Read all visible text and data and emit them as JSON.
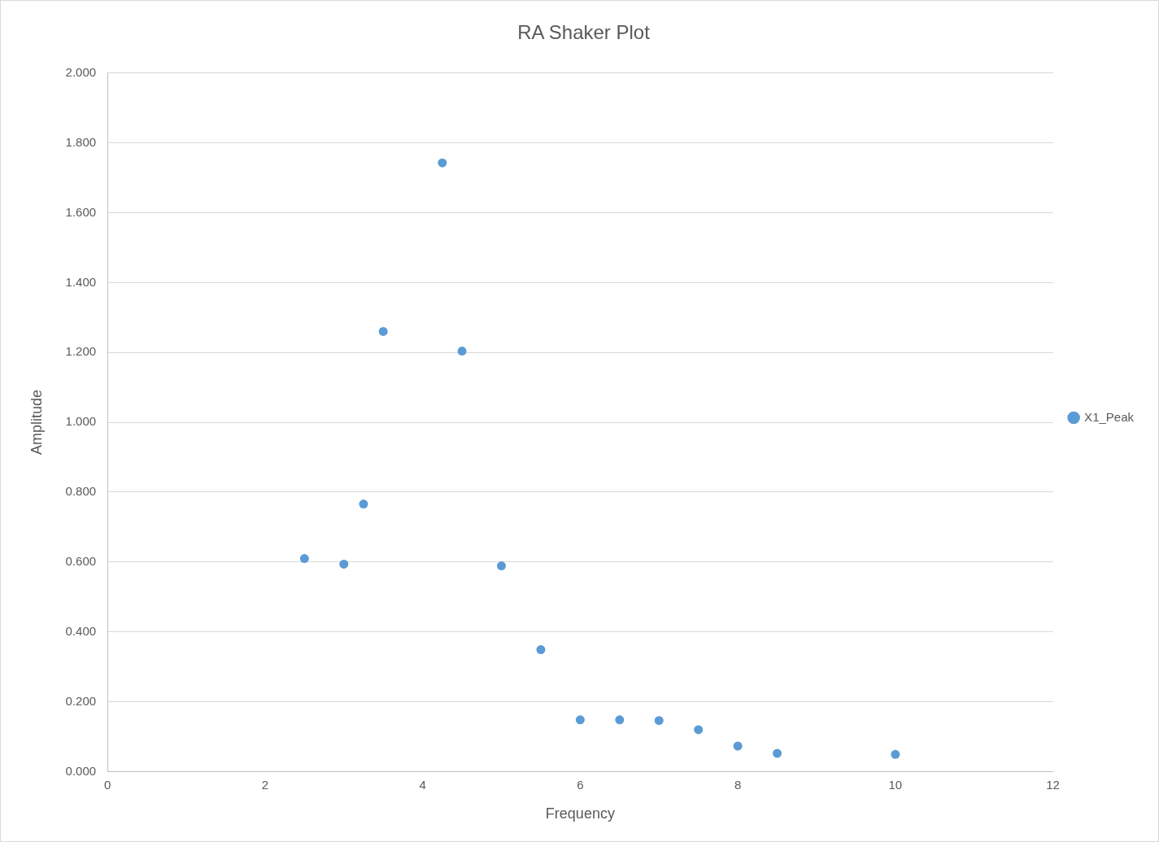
{
  "chart_data": {
    "type": "scatter",
    "title": "RA Shaker Plot",
    "xlabel": "Frequency",
    "ylabel": "Amplitude",
    "x": [
      2.5,
      3,
      3.25,
      3.5,
      4.25,
      4.5,
      5,
      5.5,
      6,
      6.5,
      7,
      7.5,
      8,
      8.5,
      10
    ],
    "series": [
      {
        "name": "X1_Peak",
        "color": "#5b9bd5",
        "values": [
          0.61,
          0.594,
          0.766,
          1.26,
          1.743,
          1.204,
          0.589,
          0.349,
          0.148,
          0.148,
          0.146,
          0.12,
          0.073,
          0.052,
          0.049
        ]
      }
    ],
    "xlim": [
      0,
      12
    ],
    "xticks": [
      0,
      2,
      4,
      6,
      8,
      10,
      12
    ],
    "ylim": [
      0,
      2
    ],
    "yticks": [
      {
        "value": 0,
        "label": "0.000"
      },
      {
        "value": 0.2,
        "label": "0.200"
      },
      {
        "value": 0.4,
        "label": "0.400"
      },
      {
        "value": 0.6,
        "label": "0.600"
      },
      {
        "value": 0.8,
        "label": "0.800"
      },
      {
        "value": 1,
        "label": "1.000"
      },
      {
        "value": 1.2,
        "label": "1.200"
      },
      {
        "value": 1.4,
        "label": "1.400"
      },
      {
        "value": 1.6,
        "label": "1.600"
      },
      {
        "value": 1.8,
        "label": "1.800"
      },
      {
        "value": 2,
        "label": "2.000"
      }
    ],
    "grid": "y",
    "legend": "right",
    "marker": "circle"
  }
}
